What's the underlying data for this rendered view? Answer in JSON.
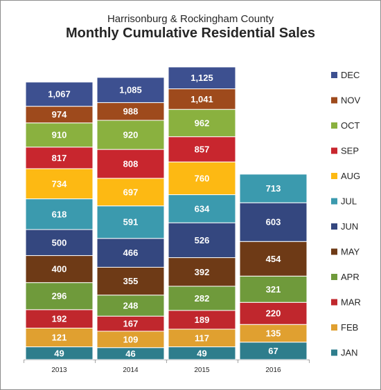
{
  "chart_data": {
    "type": "bar",
    "subtitle": "Harrisonburg & Rockingham County",
    "title": "Monthly Cumulative Residential Sales",
    "categories": [
      "2013",
      "2014",
      "2015",
      "2016"
    ],
    "ylim": [
      0,
      1130
    ],
    "grid": false,
    "legend_position": "right",
    "series": [
      {
        "name": "JAN",
        "color": "#2e7d8c",
        "values": [
          49,
          46,
          49,
          67
        ]
      },
      {
        "name": "FEB",
        "color": "#e0a030",
        "values": [
          121,
          109,
          117,
          135
        ]
      },
      {
        "name": "MAR",
        "color": "#c0272d",
        "values": [
          192,
          167,
          189,
          220
        ]
      },
      {
        "name": "APR",
        "color": "#6f9a3b",
        "values": [
          296,
          248,
          282,
          321
        ]
      },
      {
        "name": "MAY",
        "color": "#6e3a16",
        "values": [
          400,
          355,
          392,
          454
        ]
      },
      {
        "name": "JUN",
        "color": "#34477f",
        "values": [
          500,
          466,
          526,
          603
        ]
      },
      {
        "name": "JUL",
        "color": "#3b9aae",
        "values": [
          618,
          591,
          634,
          713
        ]
      },
      {
        "name": "AUG",
        "color": "#fdb913",
        "values": [
          734,
          697,
          760,
          null
        ]
      },
      {
        "name": "SEP",
        "color": "#c8262e",
        "values": [
          817,
          808,
          857,
          null
        ]
      },
      {
        "name": "OCT",
        "color": "#8ab13f",
        "values": [
          910,
          920,
          962,
          null
        ]
      },
      {
        "name": "NOV",
        "color": "#9e4a1c",
        "values": [
          974,
          988,
          1041,
          null
        ]
      },
      {
        "name": "DEC",
        "color": "#3d5090",
        "values": [
          1067,
          1085,
          1125,
          null
        ]
      }
    ]
  }
}
